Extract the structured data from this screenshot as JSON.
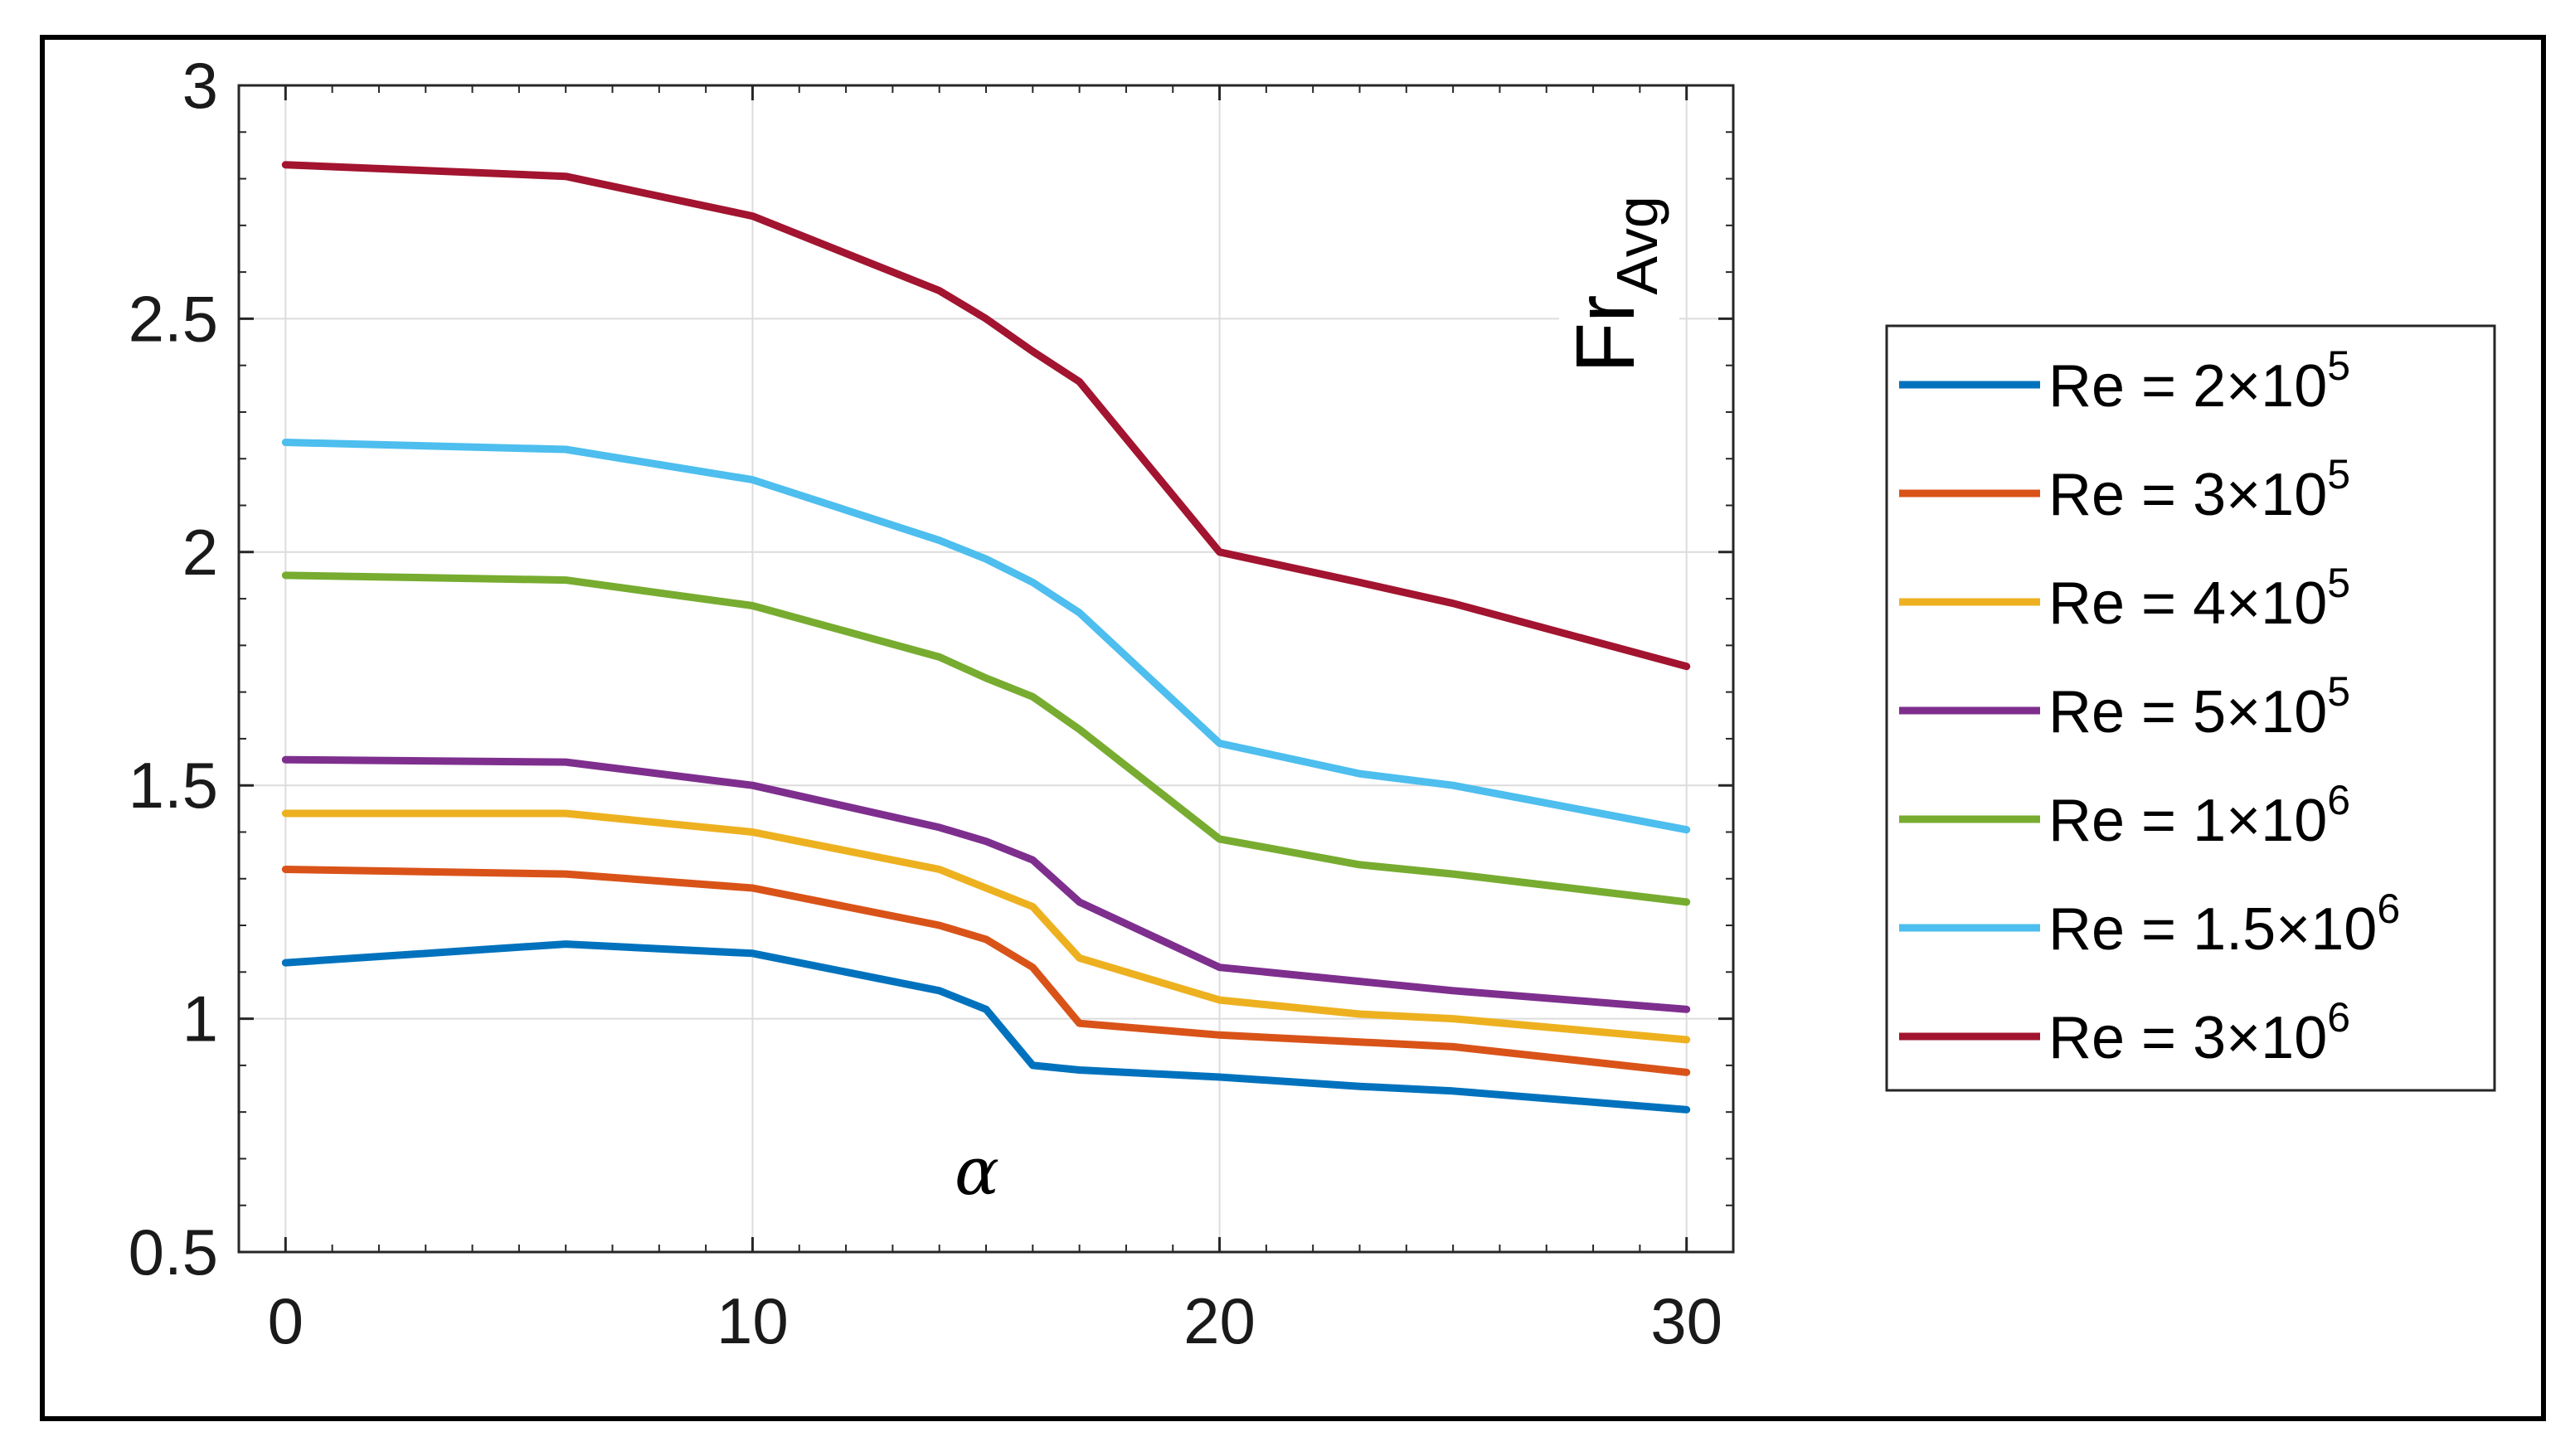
{
  "chart_data": {
    "type": "line",
    "title": "",
    "xlabel": "α",
    "ylabel": "Fr",
    "ylabel_subscript": "Avg",
    "xlim": [
      -1,
      31
    ],
    "ylim": [
      0.5,
      3
    ],
    "xticks": [
      0,
      10,
      20,
      30
    ],
    "xtick_labels": [
      "0",
      "10",
      "20",
      "30"
    ],
    "yticks": [
      0.5,
      1,
      1.5,
      2,
      2.5,
      3
    ],
    "ytick_labels": [
      "0.5",
      "1",
      "1.5",
      "2",
      "2.5",
      "3"
    ],
    "grid": true,
    "legend_position": "right-outside",
    "x": [
      0,
      6,
      10,
      14,
      15,
      16,
      17,
      20,
      23,
      25,
      30
    ],
    "series": [
      {
        "name": "Re = 2×10^5",
        "label_base": "Re = 2",
        "label_sup": "5",
        "color": "#0072BD",
        "values": [
          1.12,
          1.16,
          1.14,
          1.06,
          1.02,
          0.9,
          0.89,
          0.875,
          0.855,
          0.845,
          0.805
        ]
      },
      {
        "name": "Re = 3×10^5",
        "label_base": "Re = 3",
        "label_sup": "5",
        "color": "#D95319",
        "values": [
          1.32,
          1.31,
          1.28,
          1.2,
          1.17,
          1.11,
          0.99,
          0.965,
          0.95,
          0.94,
          0.885
        ]
      },
      {
        "name": "Re = 4×10^5",
        "label_base": "Re = 4",
        "label_sup": "5",
        "color": "#EDB120",
        "values": [
          1.44,
          1.44,
          1.4,
          1.32,
          1.28,
          1.24,
          1.13,
          1.04,
          1.01,
          1.0,
          0.955
        ]
      },
      {
        "name": "Re = 5×10^5",
        "label_base": "Re = 5",
        "label_sup": "5",
        "color": "#7E2F8E",
        "values": [
          1.555,
          1.55,
          1.5,
          1.41,
          1.38,
          1.34,
          1.25,
          1.11,
          1.08,
          1.06,
          1.02
        ]
      },
      {
        "name": "Re = 1×10^6",
        "label_base": "Re = 1",
        "label_sup": "6",
        "color": "#77AC30",
        "values": [
          1.95,
          1.94,
          1.885,
          1.775,
          1.73,
          1.69,
          1.62,
          1.385,
          1.33,
          1.31,
          1.25
        ]
      },
      {
        "name": "Re = 1.5×10^6",
        "label_base": "Re = 1.5",
        "label_sup": "6",
        "color": "#4DBEEE",
        "values": [
          2.235,
          2.22,
          2.155,
          2.025,
          1.985,
          1.935,
          1.87,
          1.59,
          1.525,
          1.5,
          1.405
        ]
      },
      {
        "name": "Re = 3×10^6",
        "label_base": "Re = 3",
        "label_sup": "6",
        "color": "#A2142F",
        "values": [
          2.83,
          2.805,
          2.72,
          2.56,
          2.5,
          2.43,
          2.365,
          2.0,
          1.935,
          1.89,
          1.755
        ]
      }
    ]
  }
}
